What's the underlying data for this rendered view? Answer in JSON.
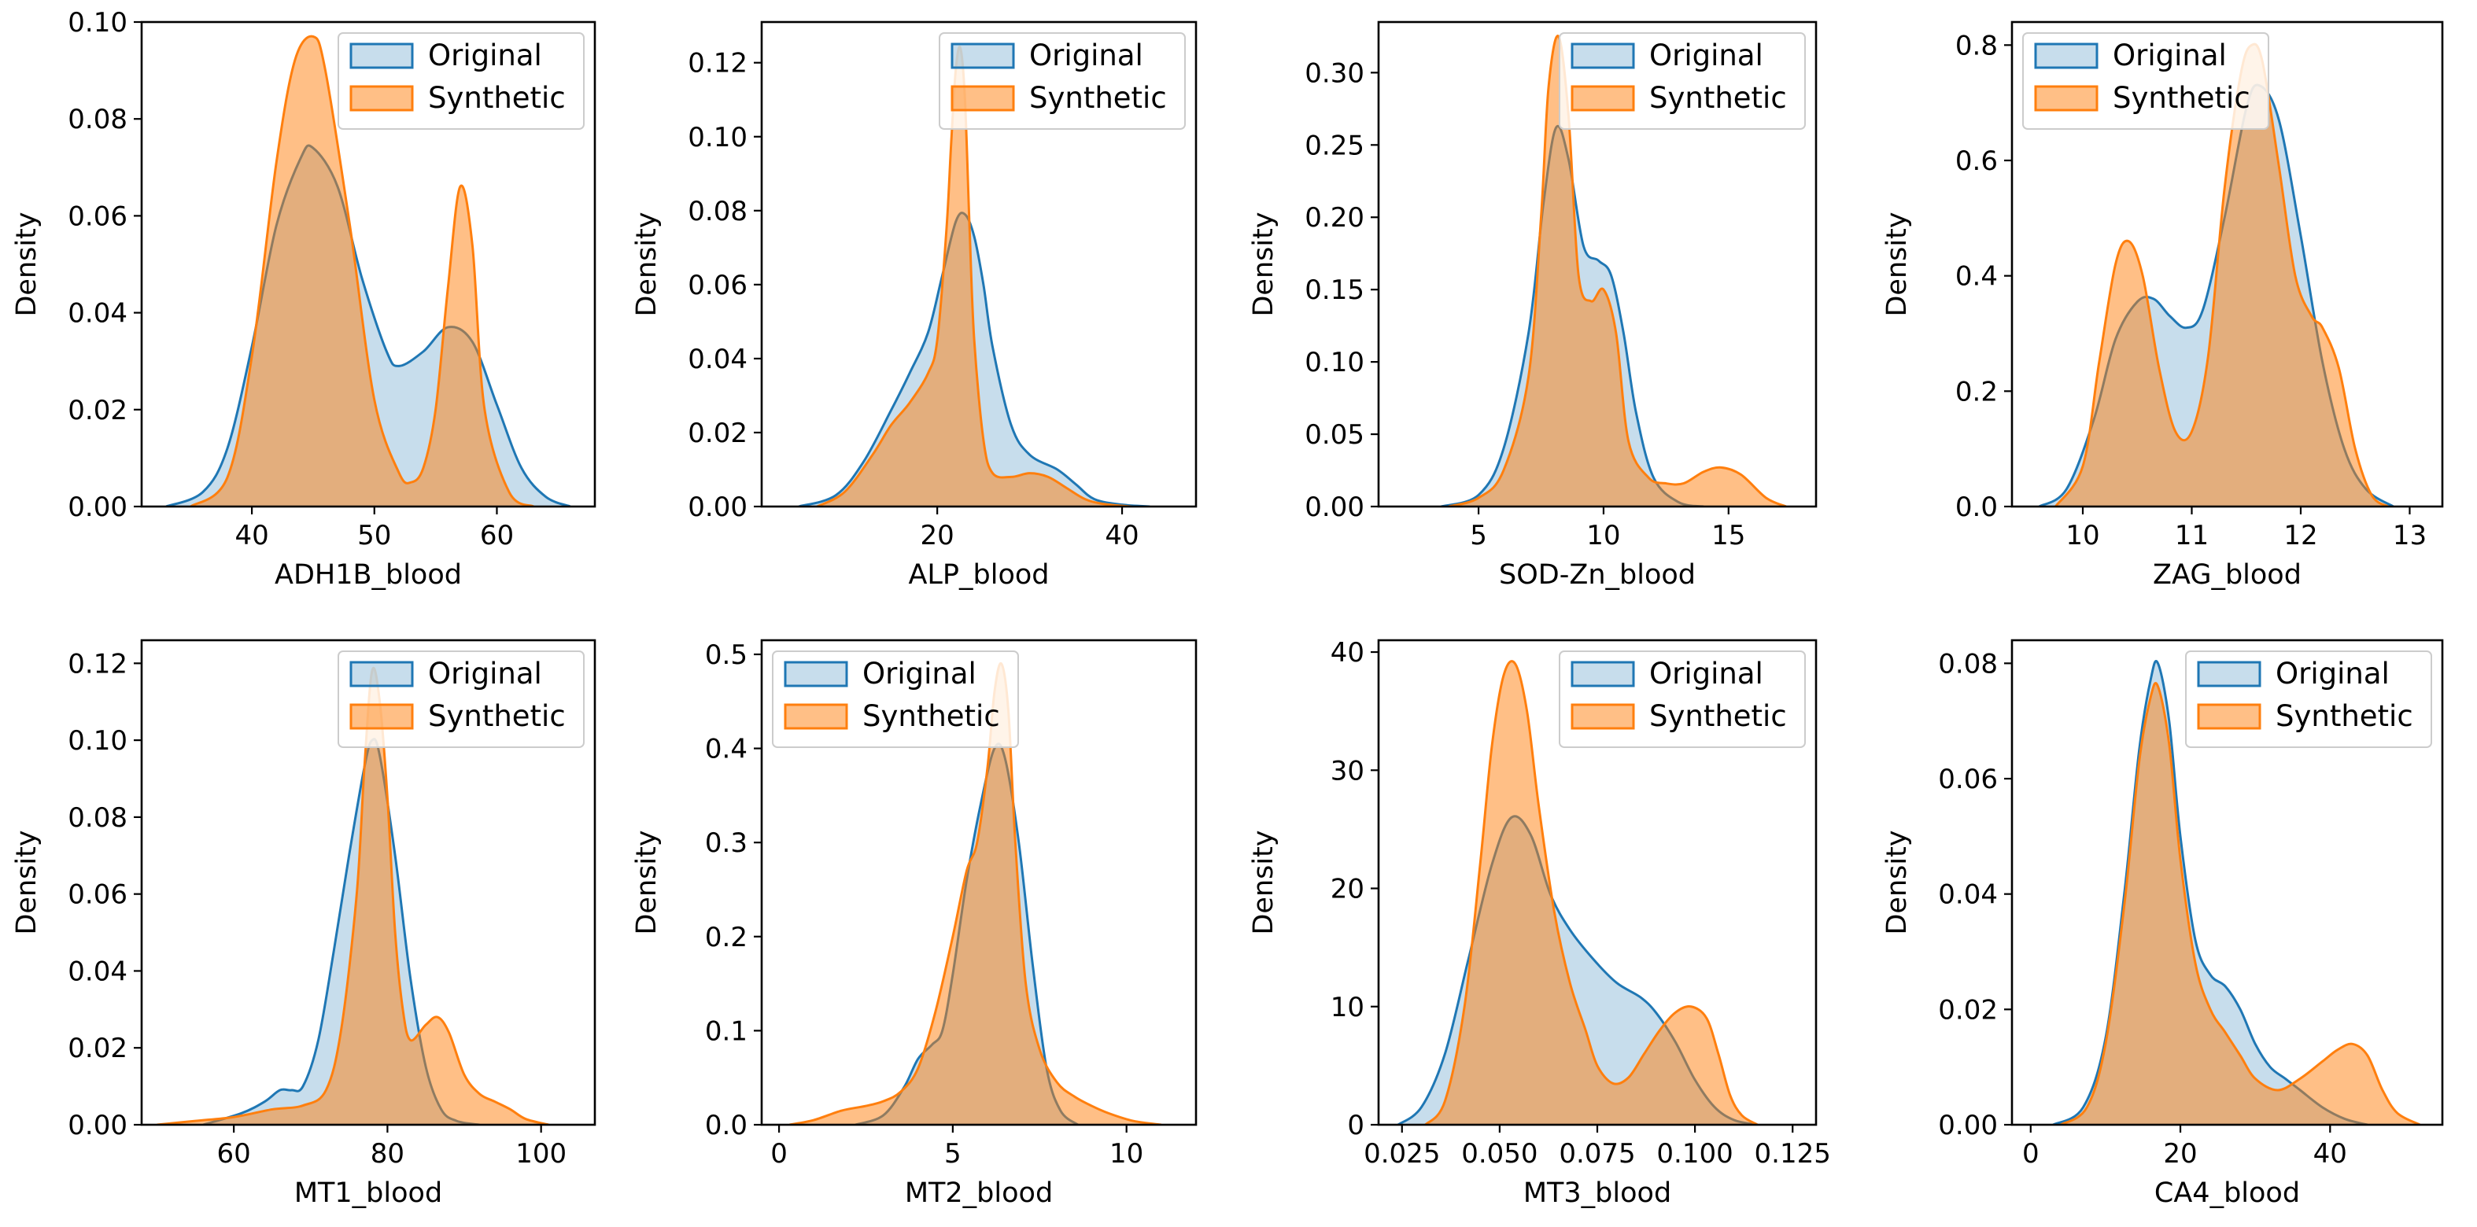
{
  "figure": {
    "ylabel": "Density",
    "colors": {
      "original": "#1f77b4",
      "synthetic": "#ff7f0e"
    },
    "legend": {
      "original": "Original",
      "synthetic": "Synthetic"
    }
  },
  "chart_data": [
    {
      "type": "kde",
      "xlabel": "ADH1B_blood",
      "ylabel": "Density",
      "xlim": [
        31,
        68
      ],
      "ylim": [
        0,
        0.1
      ],
      "xticks": [
        40,
        50,
        60
      ],
      "yticks": [
        0.0,
        0.02,
        0.04,
        0.06,
        0.08,
        0.1
      ],
      "ytick_labels": [
        "0.00",
        "0.02",
        "0.04",
        "0.06",
        "0.08",
        "0.10"
      ],
      "legend_position": "top-right",
      "series": [
        {
          "name": "Original",
          "x": [
            33,
            36,
            38,
            40,
            42,
            44,
            45,
            47,
            49,
            51,
            52,
            54,
            56,
            58,
            60,
            62,
            64,
            66
          ],
          "y": [
            0.0,
            0.003,
            0.012,
            0.033,
            0.058,
            0.072,
            0.074,
            0.066,
            0.047,
            0.032,
            0.029,
            0.032,
            0.037,
            0.034,
            0.021,
            0.008,
            0.002,
            0.0
          ]
        },
        {
          "name": "Synthetic",
          "x": [
            35,
            38,
            40,
            42,
            43.5,
            45,
            46,
            48,
            50,
            52,
            53,
            54,
            55,
            56,
            57,
            58,
            59,
            61,
            63
          ],
          "y": [
            0.0,
            0.006,
            0.031,
            0.071,
            0.092,
            0.097,
            0.09,
            0.058,
            0.022,
            0.007,
            0.005,
            0.008,
            0.02,
            0.045,
            0.066,
            0.054,
            0.02,
            0.003,
            0.0
          ]
        }
      ]
    },
    {
      "type": "kde",
      "xlabel": "ALP_blood",
      "ylabel": "Density",
      "xlim": [
        1,
        48
      ],
      "ylim": [
        0,
        0.131
      ],
      "xticks": [
        20,
        40
      ],
      "yticks": [
        0.0,
        0.02,
        0.04,
        0.06,
        0.08,
        0.1,
        0.12
      ],
      "ytick_labels": [
        "0.00",
        "0.02",
        "0.04",
        "0.06",
        "0.08",
        "0.10",
        "0.12"
      ],
      "legend_position": "top-right",
      "series": [
        {
          "name": "Original",
          "x": [
            5,
            9,
            12,
            15,
            17,
            19,
            20.5,
            22,
            23,
            24,
            25,
            26,
            28,
            30,
            33,
            35,
            37,
            40,
            43
          ],
          "y": [
            0.0,
            0.003,
            0.012,
            0.026,
            0.036,
            0.047,
            0.062,
            0.077,
            0.079,
            0.073,
            0.06,
            0.043,
            0.022,
            0.014,
            0.01,
            0.006,
            0.002,
            0.0005,
            0.0
          ]
        },
        {
          "name": "Synthetic",
          "x": [
            7,
            10,
            13,
            15,
            17,
            19,
            20,
            21,
            21.5,
            22,
            22.5,
            23,
            23.5,
            24,
            25,
            26,
            28,
            30,
            32,
            34,
            36,
            38,
            41
          ],
          "y": [
            0.0,
            0.004,
            0.014,
            0.022,
            0.028,
            0.036,
            0.045,
            0.075,
            0.098,
            0.118,
            0.124,
            0.11,
            0.075,
            0.045,
            0.018,
            0.009,
            0.008,
            0.009,
            0.008,
            0.005,
            0.002,
            0.0007,
            0.0
          ]
        }
      ]
    },
    {
      "type": "kde",
      "xlabel": "SOD-Zn_blood",
      "ylabel": "Density",
      "xlim": [
        1.0,
        18.5
      ],
      "ylim": [
        0,
        0.335
      ],
      "xticks": [
        5,
        10,
        15
      ],
      "yticks": [
        0.0,
        0.05,
        0.1,
        0.15,
        0.2,
        0.25,
        0.3
      ],
      "ytick_labels": [
        "0.00",
        "0.05",
        "0.10",
        "0.15",
        "0.20",
        "0.25",
        "0.30"
      ],
      "legend_position": "top-right",
      "series": [
        {
          "name": "Original",
          "x": [
            3.5,
            5,
            6,
            7,
            7.6,
            8.1,
            8.6,
            9.2,
            9.8,
            10.3,
            10.8,
            11.3,
            12,
            13,
            14
          ],
          "y": [
            0.0,
            0.008,
            0.04,
            0.12,
            0.21,
            0.262,
            0.24,
            0.18,
            0.17,
            0.16,
            0.12,
            0.065,
            0.02,
            0.003,
            0.0
          ]
        },
        {
          "name": "Synthetic",
          "x": [
            3.8,
            5,
            6,
            7,
            7.5,
            7.8,
            8.2,
            8.6,
            9,
            9.5,
            10,
            10.5,
            11,
            11.8,
            12.5,
            13.2,
            14,
            14.7,
            15.5,
            16.5,
            17.3
          ],
          "y": [
            0.0,
            0.006,
            0.025,
            0.09,
            0.2,
            0.29,
            0.325,
            0.27,
            0.16,
            0.142,
            0.15,
            0.12,
            0.045,
            0.02,
            0.016,
            0.016,
            0.024,
            0.027,
            0.022,
            0.006,
            0.0
          ]
        }
      ]
    },
    {
      "type": "kde",
      "xlabel": "ZAG_blood",
      "ylabel": "Density",
      "xlim": [
        9.35,
        13.3
      ],
      "ylim": [
        0,
        0.84
      ],
      "xticks": [
        10,
        11,
        12,
        13
      ],
      "yticks": [
        0.0,
        0.2,
        0.4,
        0.6,
        0.8
      ],
      "ytick_labels": [
        "0.0",
        "0.2",
        "0.4",
        "0.6",
        "0.8"
      ],
      "legend_position": "top-left",
      "series": [
        {
          "name": "Original",
          "x": [
            9.6,
            9.85,
            10.1,
            10.3,
            10.5,
            10.65,
            10.8,
            10.95,
            11.1,
            11.3,
            11.5,
            11.62,
            11.8,
            12.0,
            12.2,
            12.4,
            12.6,
            12.85
          ],
          "y": [
            0.0,
            0.03,
            0.15,
            0.29,
            0.355,
            0.36,
            0.33,
            0.31,
            0.34,
            0.5,
            0.69,
            0.73,
            0.67,
            0.47,
            0.25,
            0.1,
            0.03,
            0.0
          ]
        },
        {
          "name": "Synthetic",
          "x": [
            9.75,
            10.0,
            10.15,
            10.3,
            10.42,
            10.55,
            10.7,
            10.85,
            11.0,
            11.15,
            11.3,
            11.45,
            11.55,
            11.65,
            11.8,
            11.95,
            12.1,
            12.2,
            12.35,
            12.5,
            12.65,
            12.8
          ],
          "y": [
            0.0,
            0.07,
            0.25,
            0.42,
            0.46,
            0.4,
            0.24,
            0.13,
            0.13,
            0.26,
            0.55,
            0.75,
            0.8,
            0.77,
            0.59,
            0.4,
            0.33,
            0.31,
            0.24,
            0.1,
            0.02,
            0.0
          ]
        }
      ]
    },
    {
      "type": "kde",
      "xlabel": "MT1_blood",
      "ylabel": "Density",
      "xlim": [
        48,
        107
      ],
      "ylim": [
        0,
        0.126
      ],
      "xticks": [
        60,
        80,
        100
      ],
      "yticks": [
        0.0,
        0.02,
        0.04,
        0.06,
        0.08,
        0.1,
        0.12
      ],
      "ytick_labels": [
        "0.00",
        "0.02",
        "0.04",
        "0.06",
        "0.08",
        "0.10",
        "0.12"
      ],
      "legend_position": "top-right",
      "series": [
        {
          "name": "Original",
          "x": [
            56,
            61,
            64,
            66,
            67.5,
            69,
            71,
            73,
            75,
            77,
            78,
            79,
            81,
            83,
            85,
            87,
            89,
            92
          ],
          "y": [
            0.0,
            0.003,
            0.006,
            0.009,
            0.009,
            0.01,
            0.022,
            0.045,
            0.07,
            0.093,
            0.1,
            0.096,
            0.07,
            0.038,
            0.015,
            0.004,
            0.001,
            0.0
          ]
        },
        {
          "name": "Synthetic",
          "x": [
            50,
            55,
            60,
            65,
            69,
            72,
            74,
            76,
            77,
            78,
            79,
            80,
            81,
            82,
            83,
            85,
            86.5,
            88,
            90,
            92,
            94,
            96,
            98,
            101
          ],
          "y": [
            0.0,
            0.001,
            0.002,
            0.004,
            0.005,
            0.009,
            0.025,
            0.06,
            0.093,
            0.118,
            0.11,
            0.085,
            0.05,
            0.03,
            0.022,
            0.026,
            0.028,
            0.024,
            0.013,
            0.008,
            0.006,
            0.004,
            0.0015,
            0.0
          ]
        }
      ]
    },
    {
      "type": "kde",
      "xlabel": "MT2_blood",
      "ylabel": "Density",
      "xlim": [
        -0.5,
        12.0
      ],
      "ylim": [
        0,
        0.515
      ],
      "xticks": [
        0,
        5,
        10
      ],
      "yticks": [
        0.0,
        0.1,
        0.2,
        0.3,
        0.4,
        0.5
      ],
      "ytick_labels": [
        "0.0",
        "0.1",
        "0.2",
        "0.3",
        "0.4",
        "0.5"
      ],
      "legend_position": "top-left",
      "series": [
        {
          "name": "Original",
          "x": [
            2.2,
            3.0,
            3.6,
            4.0,
            4.4,
            4.7,
            5.0,
            5.4,
            5.8,
            6.2,
            6.5,
            6.9,
            7.3,
            7.7,
            8.1,
            8.6
          ],
          "y": [
            0.0,
            0.01,
            0.04,
            0.07,
            0.085,
            0.1,
            0.16,
            0.26,
            0.34,
            0.4,
            0.39,
            0.3,
            0.17,
            0.06,
            0.015,
            0.0
          ]
        },
        {
          "name": "Synthetic",
          "x": [
            0.3,
            1.0,
            1.8,
            2.5,
            3.0,
            3.5,
            4.0,
            4.5,
            5.0,
            5.4,
            5.7,
            6.0,
            6.2,
            6.4,
            6.6,
            6.8,
            7.1,
            7.5,
            8.0,
            8.5,
            9.0,
            9.5,
            10.2,
            11.0
          ],
          "y": [
            0.0,
            0.005,
            0.015,
            0.02,
            0.025,
            0.035,
            0.06,
            0.12,
            0.2,
            0.27,
            0.3,
            0.38,
            0.46,
            0.49,
            0.44,
            0.3,
            0.15,
            0.08,
            0.045,
            0.03,
            0.02,
            0.012,
            0.004,
            0.0
          ]
        }
      ]
    },
    {
      "type": "kde",
      "xlabel": "MT3_blood",
      "ylabel": "Density",
      "xlim": [
        0.019,
        0.131
      ],
      "ylim": [
        0,
        41
      ],
      "xticks": [
        0.025,
        0.05,
        0.075,
        0.1,
        0.125
      ],
      "ytick_labels": [
        "0",
        "10",
        "20",
        "30",
        "40"
      ],
      "xtick_labels": [
        "0.025",
        "0.050",
        "0.075",
        "0.100",
        "0.125"
      ],
      "yticks": [
        0,
        10,
        20,
        30,
        40
      ],
      "legend_position": "top-right",
      "series": [
        {
          "name": "Original",
          "x": [
            0.024,
            0.03,
            0.036,
            0.042,
            0.048,
            0.053,
            0.058,
            0.063,
            0.068,
            0.074,
            0.08,
            0.086,
            0.09,
            0.095,
            0.1,
            0.105,
            0.11,
            0.116
          ],
          "y": [
            0.0,
            1.5,
            6,
            14,
            22,
            26,
            24.5,
            19.5,
            16.5,
            14,
            12,
            10.8,
            9.5,
            7,
            3.8,
            1.5,
            0.4,
            0.0
          ]
        },
        {
          "name": "Synthetic",
          "x": [
            0.031,
            0.036,
            0.041,
            0.045,
            0.048,
            0.051,
            0.054,
            0.057,
            0.06,
            0.064,
            0.068,
            0.072,
            0.075,
            0.079,
            0.083,
            0.087,
            0.091,
            0.095,
            0.099,
            0.103,
            0.106,
            0.109,
            0.112,
            0.116
          ],
          "y": [
            0.0,
            2,
            10,
            22,
            32,
            38,
            39,
            35,
            27,
            18,
            12,
            8,
            5,
            3.5,
            4,
            6,
            8,
            9.5,
            10,
            9,
            6,
            2.5,
            0.8,
            0.0
          ]
        }
      ]
    },
    {
      "type": "kde",
      "xlabel": "CA4_blood",
      "ylabel": "Density",
      "xlim": [
        -2.5,
        55
      ],
      "ylim": [
        0,
        0.084
      ],
      "xticks": [
        0,
        20,
        40
      ],
      "yticks": [
        0.0,
        0.02,
        0.04,
        0.06,
        0.08
      ],
      "ytick_labels": [
        "0.00",
        "0.02",
        "0.04",
        "0.06",
        "0.08"
      ],
      "legend_position": "top-right",
      "series": [
        {
          "name": "Original",
          "x": [
            3,
            7,
            10,
            12.5,
            14.5,
            16,
            17,
            18.5,
            20,
            22,
            24,
            26,
            28,
            30,
            32,
            34,
            36,
            39,
            42,
            45
          ],
          "y": [
            0.0,
            0.003,
            0.015,
            0.04,
            0.065,
            0.077,
            0.08,
            0.07,
            0.05,
            0.032,
            0.026,
            0.024,
            0.02,
            0.014,
            0.01,
            0.008,
            0.006,
            0.003,
            0.001,
            0.0
          ]
        },
        {
          "name": "Synthetic",
          "x": [
            4,
            7.5,
            10,
            12.5,
            14.5,
            16,
            17,
            18.5,
            20,
            22,
            24,
            26,
            28,
            30,
            33,
            36,
            39,
            41,
            43,
            45,
            47,
            49,
            52
          ],
          "y": [
            0.0,
            0.003,
            0.014,
            0.038,
            0.063,
            0.074,
            0.076,
            0.066,
            0.046,
            0.028,
            0.02,
            0.016,
            0.012,
            0.008,
            0.006,
            0.008,
            0.011,
            0.013,
            0.014,
            0.012,
            0.006,
            0.002,
            0.0
          ]
        }
      ]
    }
  ]
}
